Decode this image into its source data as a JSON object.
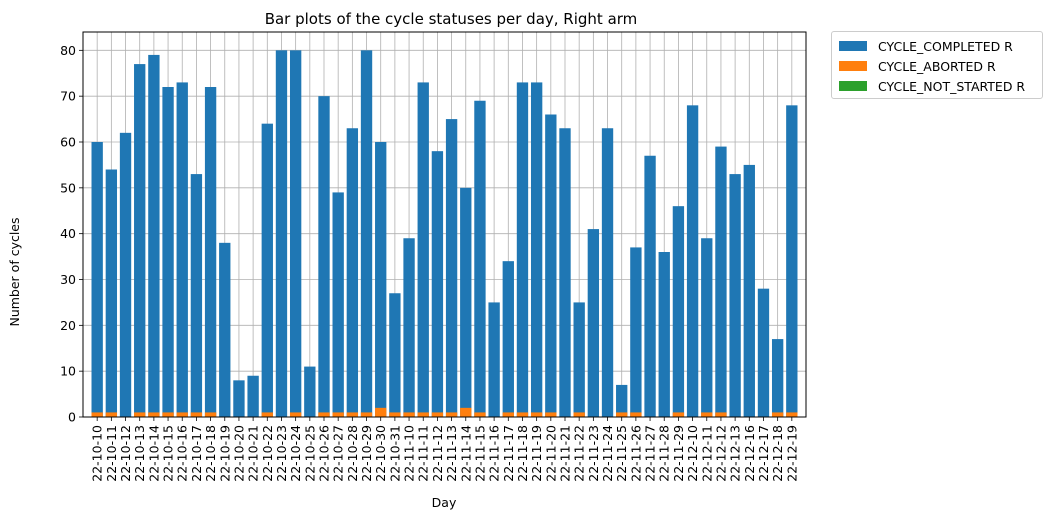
{
  "chart_data": {
    "type": "bar",
    "stacked": true,
    "title": "Bar plots of the cycle statuses per day, Right arm",
    "xlabel": "Day",
    "ylabel": "Number of cycles",
    "ylim": [
      0,
      84
    ],
    "yticks": [
      0,
      10,
      20,
      30,
      40,
      50,
      60,
      70,
      80
    ],
    "grid": true,
    "legend_position": "outside-top-right",
    "categories": [
      "22-10-10",
      "22-10-11",
      "22-10-12",
      "22-10-13",
      "22-10-14",
      "22-10-15",
      "22-10-16",
      "22-10-17",
      "22-10-18",
      "22-10-19",
      "22-10-20",
      "22-10-21",
      "22-10-22",
      "22-10-23",
      "22-10-24",
      "22-10-25",
      "22-10-26",
      "22-10-27",
      "22-10-28",
      "22-10-29",
      "22-10-30",
      "22-10-31",
      "22-11-10",
      "22-11-11",
      "22-11-12",
      "22-11-13",
      "22-11-14",
      "22-11-15",
      "22-11-16",
      "22-11-17",
      "22-11-18",
      "22-11-19",
      "22-11-20",
      "22-11-21",
      "22-11-22",
      "22-11-23",
      "22-11-24",
      "22-11-25",
      "22-11-26",
      "22-11-27",
      "22-11-28",
      "22-11-29",
      "22-12-10",
      "22-12-11",
      "22-12-12",
      "22-12-13",
      "22-12-16",
      "22-12-17",
      "22-12-18",
      "22-12-19"
    ],
    "series": [
      {
        "name": "CYCLE_COMPLETED R",
        "color": "#1f77b4",
        "values": [
          60,
          54,
          62,
          77,
          79,
          72,
          73,
          53,
          72,
          38,
          8,
          9,
          64,
          80,
          80,
          11,
          70,
          49,
          63,
          80,
          60,
          27,
          39,
          73,
          58,
          65,
          50,
          69,
          25,
          34,
          73,
          73,
          66,
          63,
          25,
          41,
          63,
          7,
          37,
          57,
          36,
          46,
          68,
          39,
          59,
          53,
          55,
          28,
          17,
          68
        ]
      },
      {
        "name": "CYCLE_ABORTED R",
        "color": "#ff7f0e",
        "values": [
          1,
          1,
          0,
          1,
          1,
          1,
          1,
          1,
          1,
          0,
          0,
          0,
          1,
          0,
          1,
          0,
          1,
          1,
          1,
          1,
          2,
          1,
          1,
          1,
          1,
          1,
          2,
          1,
          0,
          1,
          1,
          1,
          1,
          0,
          1,
          0,
          0,
          1,
          1,
          0,
          0,
          1,
          0,
          1,
          1,
          0,
          0,
          0,
          1,
          1
        ]
      },
      {
        "name": "CYCLE_NOT_STARTED R",
        "color": "#2ca02c",
        "values": [
          0,
          0,
          0,
          0,
          0,
          0,
          0,
          0,
          0,
          0,
          0,
          0,
          0,
          0,
          0,
          0,
          0,
          0,
          0,
          0,
          0,
          0,
          0,
          0,
          0,
          0,
          0,
          0,
          0,
          0,
          0,
          0,
          0,
          0,
          0,
          0,
          0,
          0,
          0,
          0,
          0,
          0,
          0,
          0,
          0,
          0,
          0,
          0,
          0,
          0
        ]
      }
    ]
  }
}
